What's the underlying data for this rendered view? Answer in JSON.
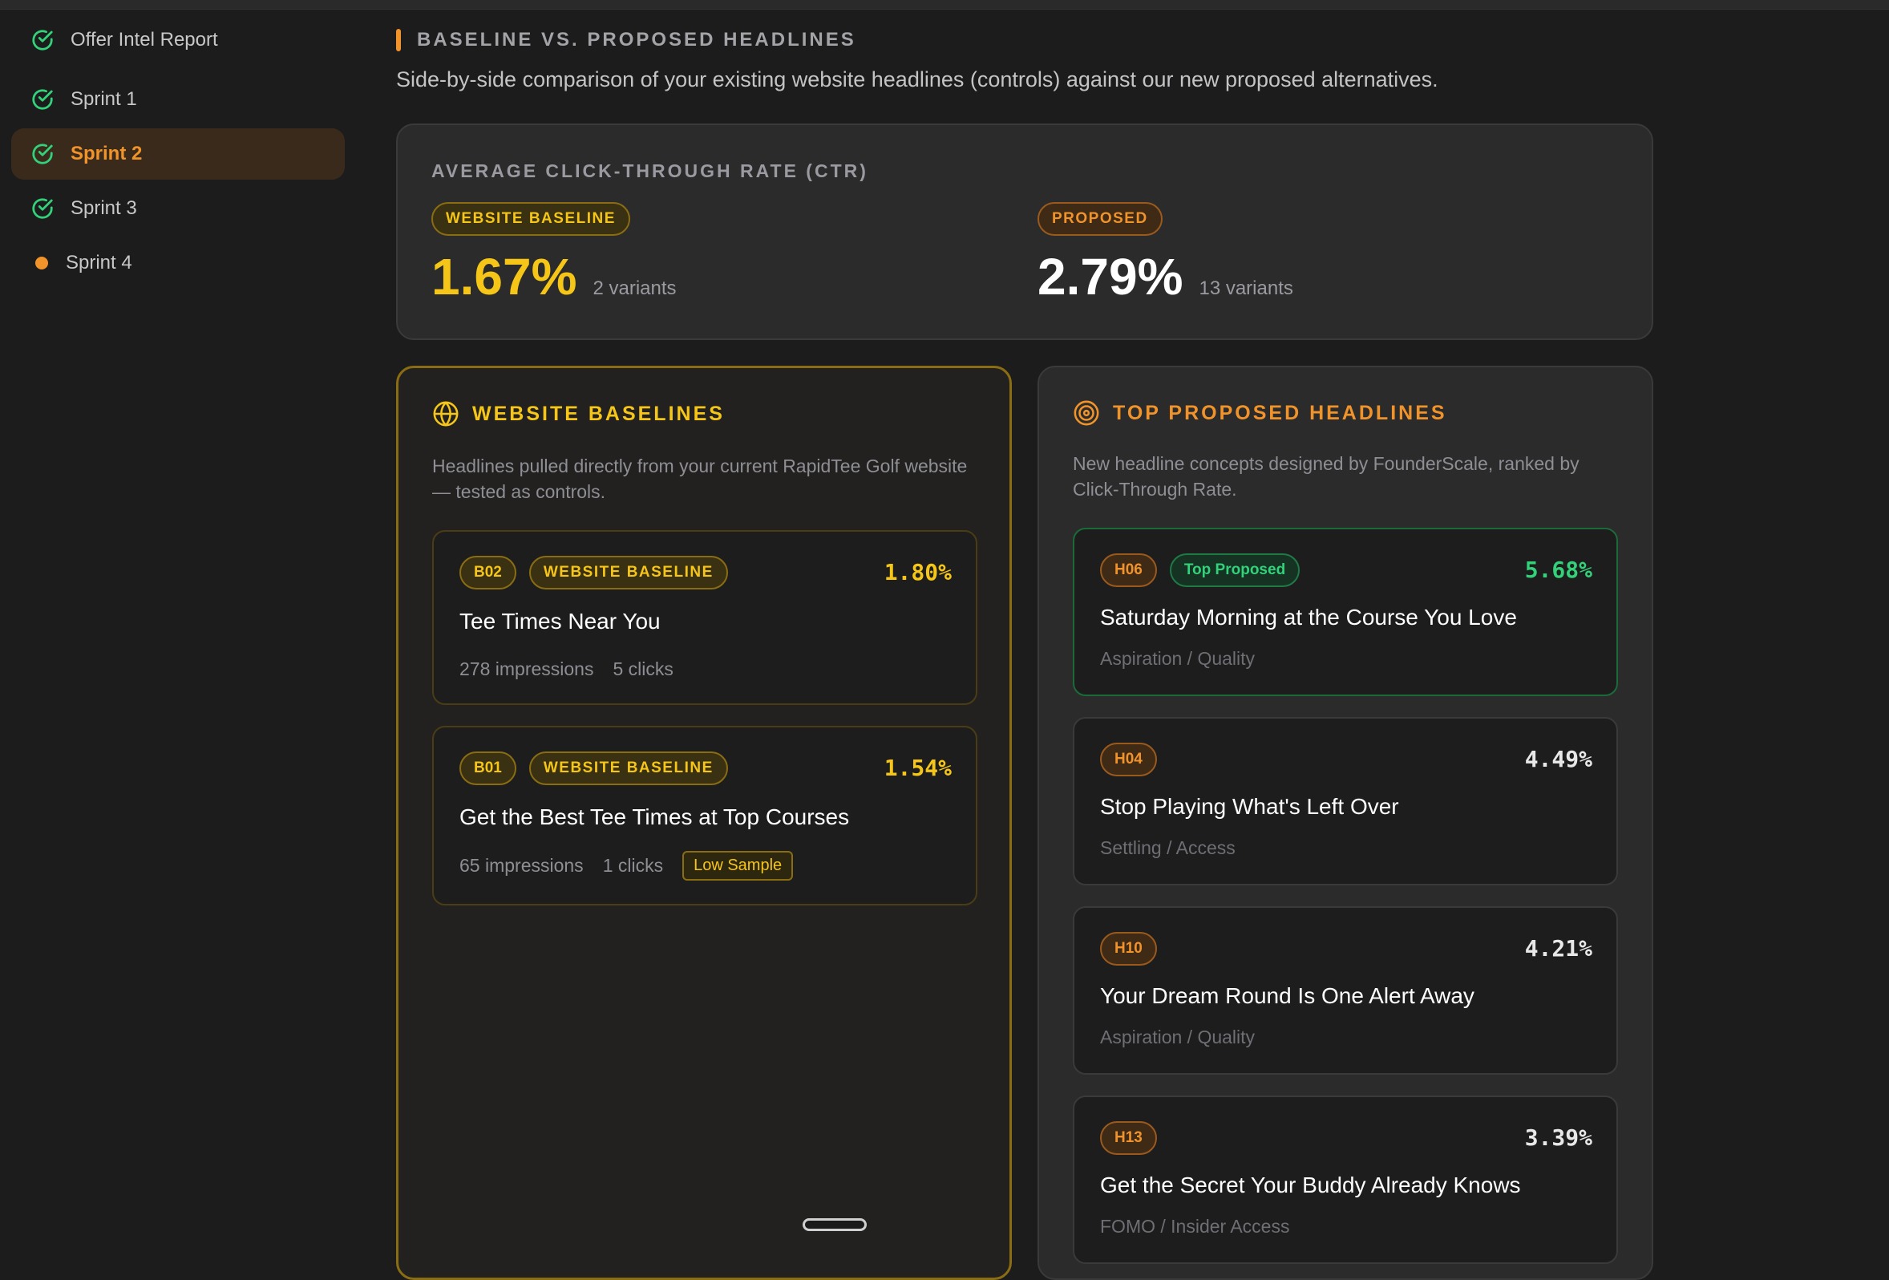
{
  "sidebar": {
    "items": [
      {
        "label": "Offer Intel Report",
        "icon": "check-circle-icon",
        "state": "done"
      },
      {
        "label": "Sprint 1",
        "icon": "check-circle-icon",
        "state": "done"
      },
      {
        "label": "Sprint 2",
        "icon": "check-circle-icon",
        "state": "active"
      },
      {
        "label": "Sprint 3",
        "icon": "check-circle-icon",
        "state": "done"
      },
      {
        "label": "Sprint 4",
        "icon": "dot-icon",
        "state": "in-progress"
      }
    ]
  },
  "section": {
    "title": "BASELINE VS. PROPOSED HEADLINES",
    "description": "Side-by-side comparison of your existing website headlines (controls) against our new proposed alternatives."
  },
  "ctr": {
    "label": "AVERAGE CLICK-THROUGH RATE (CTR)",
    "baseline": {
      "pill": "WEBSITE BASELINE",
      "value": "1.67%",
      "sub": "2 variants"
    },
    "proposed": {
      "pill": "PROPOSED",
      "value": "2.79%",
      "sub": "13 variants"
    }
  },
  "baselines": {
    "title": "WEBSITE BASELINES",
    "icon": "globe-icon",
    "description": "Headlines pulled directly from your current RapidTee Golf website — tested as controls.",
    "cards": [
      {
        "id": "B02",
        "tag": "WEBSITE BASELINE",
        "ctr": "1.80%",
        "headline": "Tee Times Near You",
        "impressions": "278 impressions",
        "clicks": "5 clicks",
        "flag": ""
      },
      {
        "id": "B01",
        "tag": "WEBSITE BASELINE",
        "ctr": "1.54%",
        "headline": "Get the Best Tee Times at Top Courses",
        "impressions": "65 impressions",
        "clicks": "1 clicks",
        "flag": "Low Sample"
      }
    ]
  },
  "proposed": {
    "title": "TOP PROPOSED HEADLINES",
    "icon": "target-icon",
    "description": "New headline concepts designed by FounderScale, ranked by Click-Through Rate.",
    "cards": [
      {
        "id": "H06",
        "tag": "Top Proposed",
        "ctr": "5.68%",
        "headline": "Saturday Morning at the Course You Love",
        "category": "Aspiration / Quality"
      },
      {
        "id": "H04",
        "tag": "",
        "ctr": "4.49%",
        "headline": "Stop Playing What's Left Over",
        "category": "Settling / Access"
      },
      {
        "id": "H10",
        "tag": "",
        "ctr": "4.21%",
        "headline": "Your Dream Round Is One Alert Away",
        "category": "Aspiration / Quality"
      },
      {
        "id": "H13",
        "tag": "",
        "ctr": "3.39%",
        "headline": "Get the Secret Your Buddy Already Knows",
        "category": "FOMO / Insider Access"
      }
    ]
  },
  "colors": {
    "accent_orange": "#f0932b",
    "gold": "#f5c518",
    "green": "#33d17a",
    "background": "#1c1c1c"
  }
}
